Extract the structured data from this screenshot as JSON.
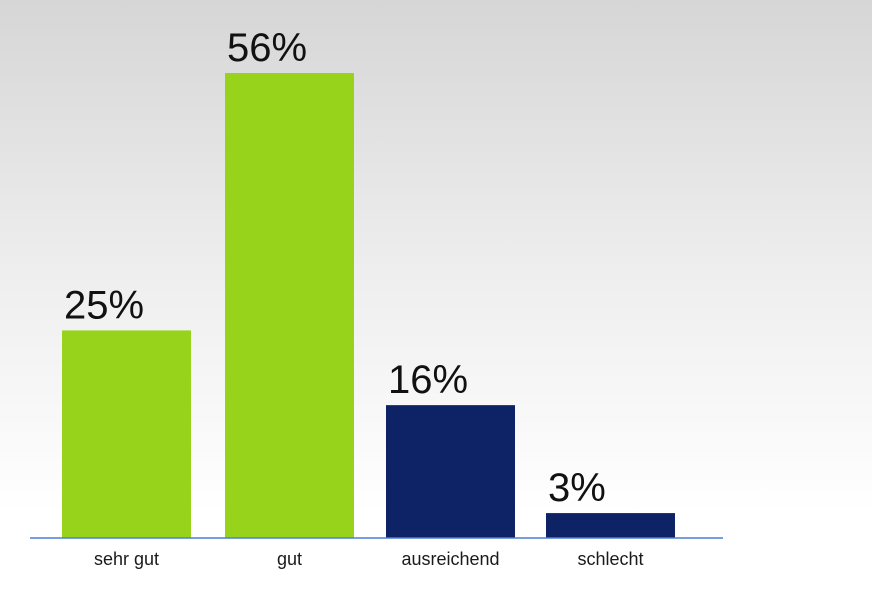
{
  "chart_data": {
    "type": "bar",
    "categories": [
      "sehr gut",
      "gut",
      "ausreichend",
      "schlecht"
    ],
    "values": [
      25,
      56,
      16,
      3
    ],
    "value_labels": [
      "25%",
      "56%",
      "16%",
      "3%"
    ],
    "bar_colors": [
      "#96d31a",
      "#96d31a",
      "#0d2366",
      "#0d2366"
    ],
    "baseline_color": "#4a7fd4",
    "ylim": [
      0,
      56
    ],
    "grid": false,
    "legend": "none"
  }
}
